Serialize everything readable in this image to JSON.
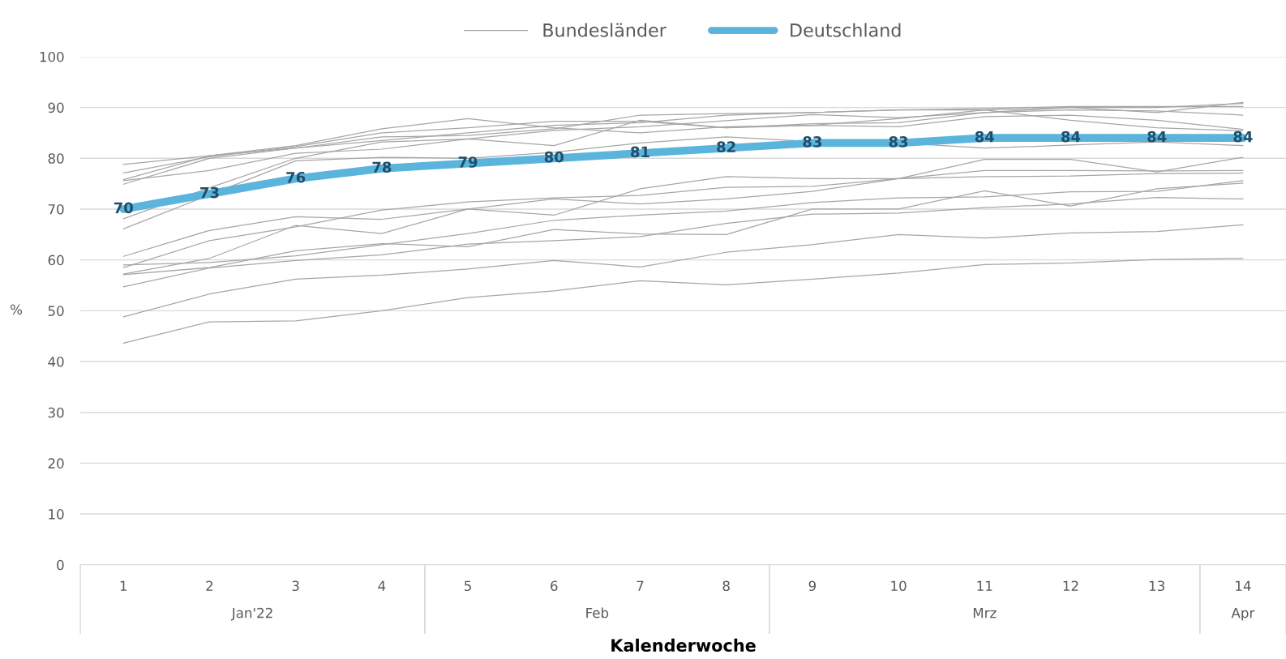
{
  "chart_data": {
    "type": "line",
    "xlabel": "Kalenderwoche",
    "ylabel": "%",
    "categories": [
      "1",
      "2",
      "3",
      "4",
      "5",
      "6",
      "7",
      "8",
      "9",
      "10",
      "11",
      "12",
      "13",
      "14"
    ],
    "annotations": [
      "Jan'22",
      "Feb",
      "Mrz",
      "Apr"
    ],
    "ylim": [
      0,
      100
    ],
    "yticks": [
      0,
      10,
      20,
      30,
      40,
      50,
      60,
      70,
      80,
      90,
      100
    ],
    "grid": "y",
    "legend": "top",
    "marker": "none",
    "line_style": "solid",
    "series": [
      {
        "name": "Bundesländer",
        "color": "#a6a6a6",
        "values": [
          78.8,
          80.5,
          82.5,
          85.8,
          87.8,
          86.0,
          85.0,
          86.2,
          86.5,
          87.8,
          89.5,
          87.5,
          86.0,
          85.4
        ]
      },
      {
        "color": "#a6a6a6",
        "values": [
          77.1,
          80.3,
          82.3,
          85.0,
          86.0,
          87.3,
          87.3,
          86.0,
          86.8,
          87.0,
          89.0,
          90.0,
          89.0,
          91.0
        ]
      },
      {
        "color": "#a6a6a6",
        "values": [
          75.8,
          80.5,
          82.0,
          84.2,
          84.5,
          85.8,
          88.5,
          88.8,
          89.0,
          89.5,
          89.8,
          90.2,
          90.2,
          90.2
        ]
      },
      {
        "color": "#a6a6a6",
        "values": [
          75.6,
          77.6,
          81.0,
          81.8,
          83.8,
          85.5,
          86.2,
          87.4,
          88.6,
          88.0,
          89.0,
          89.5,
          89.3,
          88.5
        ]
      },
      {
        "color": "#a6a6a6",
        "values": [
          74.9,
          80.0,
          82.0,
          83.5,
          85.0,
          86.5,
          87.0,
          88.5,
          89.0,
          89.5,
          89.5,
          90.0,
          90.0,
          90.8
        ]
      },
      {
        "color": "#a6a6a6",
        "values": [
          68.1,
          74.2,
          80.0,
          83.2,
          83.8,
          82.5,
          87.5,
          86.0,
          86.5,
          86.2,
          88.2,
          88.5,
          87.5,
          85.7
        ]
      },
      {
        "color": "#a6a6a6",
        "values": [
          66.1,
          72.8,
          79.5,
          80.2,
          80.0,
          81.2,
          83.0,
          84.2,
          83.3,
          83.0,
          82.0,
          82.6,
          83.2,
          82.5
        ]
      },
      {
        "color": "#a6a6a6",
        "values": [
          60.7,
          65.8,
          68.5,
          68.0,
          70.0,
          72.0,
          71.0,
          72.0,
          73.5,
          76.0,
          79.8,
          79.8,
          77.3,
          80.2
        ]
      },
      {
        "color": "#a6a6a6",
        "values": [
          58.5,
          63.8,
          66.5,
          69.8,
          71.4,
          72.2,
          72.7,
          74.3,
          74.5,
          76.0,
          77.6,
          77.6,
          77.5,
          77.6
        ]
      },
      {
        "color": "#a6a6a6",
        "values": [
          57.2,
          60.3,
          66.8,
          65.2,
          70.0,
          68.8,
          74.0,
          76.4,
          76.0,
          76.0,
          76.4,
          76.5,
          77.0,
          77.1
        ]
      },
      {
        "color": "#a6a6a6",
        "values": [
          59.0,
          59.5,
          60.8,
          63.0,
          65.2,
          67.8,
          68.8,
          69.6,
          71.3,
          72.2,
          72.4,
          73.4,
          73.5,
          75.6
        ]
      },
      {
        "color": "#a6a6a6",
        "values": [
          57.1,
          58.5,
          61.8,
          63.2,
          62.6,
          66.0,
          65.1,
          65.0,
          70.0,
          70.0,
          73.6,
          70.6,
          74.0,
          75.1
        ]
      },
      {
        "color": "#a6a6a6",
        "values": [
          54.7,
          58.4,
          59.9,
          61.0,
          63.1,
          63.8,
          64.6,
          67.2,
          69.0,
          69.2,
          70.3,
          71.0,
          72.3,
          72.0
        ]
      },
      {
        "color": "#a6a6a6",
        "values": [
          48.8,
          53.3,
          56.2,
          57.0,
          58.2,
          59.9,
          58.6,
          61.5,
          63.0,
          65.0,
          64.3,
          65.3,
          65.6,
          66.9
        ]
      },
      {
        "color": "#a6a6a6",
        "values": [
          43.6,
          47.8,
          48.0,
          50.0,
          52.6,
          53.9,
          55.9,
          55.1,
          56.2,
          57.4,
          59.1,
          59.4,
          60.1,
          60.3
        ]
      },
      {
        "name": "Deutschland",
        "color": "#5ab4dc",
        "data_labels": true,
        "values": [
          70,
          73,
          76,
          78,
          79,
          80,
          81,
          82,
          83,
          83,
          84,
          84,
          84,
          84
        ]
      }
    ]
  }
}
